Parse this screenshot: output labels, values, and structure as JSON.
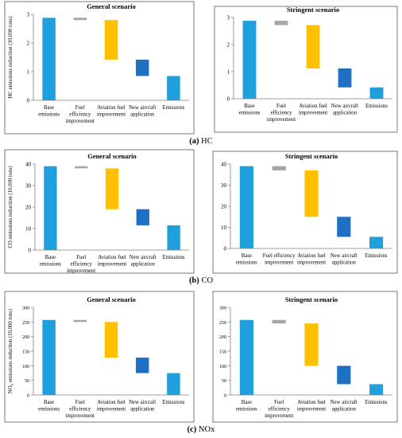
{
  "captions": [
    {
      "letter": "(a)",
      "name": "HC"
    },
    {
      "letter": "(b)",
      "name": "CO"
    },
    {
      "letter": "(c)",
      "name": "NOx"
    }
  ],
  "colors": {
    "base": "#1fa0dc",
    "fuel": "#a6a6a6",
    "aviation": "#ffc000",
    "aircraft": "#1f6fc4",
    "emissions": "#1fa0dc"
  },
  "chart_data": [
    {
      "type": "bar",
      "subtype": "waterfall",
      "title": "General scenario",
      "ylabel": "HC emissions reduction (10,000 tons)",
      "ylim": [
        0,
        3
      ],
      "yticks": [
        0,
        1,
        2,
        3
      ],
      "categories": [
        "Base emissions",
        "Fuel efficiency improvement",
        "Aviation fuel improvement",
        "New aircraft application",
        "Emissions"
      ],
      "ranges": [
        [
          0,
          2.88
        ],
        [
          2.8,
          2.88
        ],
        [
          1.42,
          2.8
        ],
        [
          0.85,
          1.42
        ],
        [
          0,
          0.85
        ]
      ]
    },
    {
      "type": "bar",
      "subtype": "waterfall",
      "title": "Stringent scenario",
      "ylabel": "",
      "ylim": [
        0,
        3
      ],
      "yticks": [
        0,
        1,
        2,
        3
      ],
      "categories": [
        "Base emissions",
        "Fuel efficiency improvement",
        "Aviation fuel improvement",
        "New aircraft application",
        "Emissions"
      ],
      "ranges": [
        [
          0,
          2.88
        ],
        [
          2.72,
          2.88
        ],
        [
          1.12,
          2.72
        ],
        [
          0.42,
          1.12
        ],
        [
          0,
          0.42
        ]
      ]
    },
    {
      "type": "bar",
      "subtype": "waterfall",
      "title": "General scenario",
      "ylabel": "CO emissions reduction (10,000 tons)",
      "ylim": [
        0,
        40
      ],
      "yticks": [
        0,
        10,
        20,
        30,
        40
      ],
      "categories": [
        "Base emissions",
        "Fuel efficiency improvement",
        "Aviation fuel improvement",
        "New aircraft application",
        "Emissions"
      ],
      "ranges": [
        [
          0,
          39
        ],
        [
          38,
          39
        ],
        [
          19,
          38
        ],
        [
          11.5,
          19
        ],
        [
          0,
          11.5
        ]
      ]
    },
    {
      "type": "bar",
      "subtype": "waterfall",
      "title": "Stringent scenario",
      "ylabel": "",
      "ylim": [
        0,
        40
      ],
      "yticks": [
        0,
        10,
        20,
        30,
        40
      ],
      "categories": [
        "Base emissions",
        "Fuel efficiency improvement",
        "Aviation fuel improvement",
        "New aircraft application",
        "Emissions"
      ],
      "ranges": [
        [
          0,
          39
        ],
        [
          37,
          39
        ],
        [
          15,
          37
        ],
        [
          5.5,
          15
        ],
        [
          0,
          5.5
        ]
      ]
    },
    {
      "type": "bar",
      "subtype": "waterfall",
      "title": "General scenario",
      "ylabel": "NOx emissions reduction (10,000 tons)",
      "ylim": [
        0,
        300
      ],
      "yticks": [
        0,
        50,
        100,
        150,
        200,
        250,
        300
      ],
      "categories": [
        "Base emissions",
        "Fuel efficiency improvement",
        "Aviation fuel improvement",
        "New aircraft application",
        "Emissions"
      ],
      "ranges": [
        [
          0,
          257
        ],
        [
          250,
          257
        ],
        [
          128,
          250
        ],
        [
          75,
          128
        ],
        [
          0,
          75
        ]
      ]
    },
    {
      "type": "bar",
      "subtype": "waterfall",
      "title": "Stringent scenario",
      "ylabel": "",
      "ylim": [
        0,
        300
      ],
      "yticks": [
        0,
        50,
        100,
        150,
        200,
        250,
        300
      ],
      "categories": [
        "Base emissions",
        "Fuel efficiency improvement",
        "Aviation fuel improvement",
        "New aircraft application",
        "Emissions"
      ],
      "ranges": [
        [
          0,
          257
        ],
        [
          245,
          257
        ],
        [
          100,
          245
        ],
        [
          37,
          100
        ],
        [
          0,
          37
        ]
      ]
    }
  ]
}
